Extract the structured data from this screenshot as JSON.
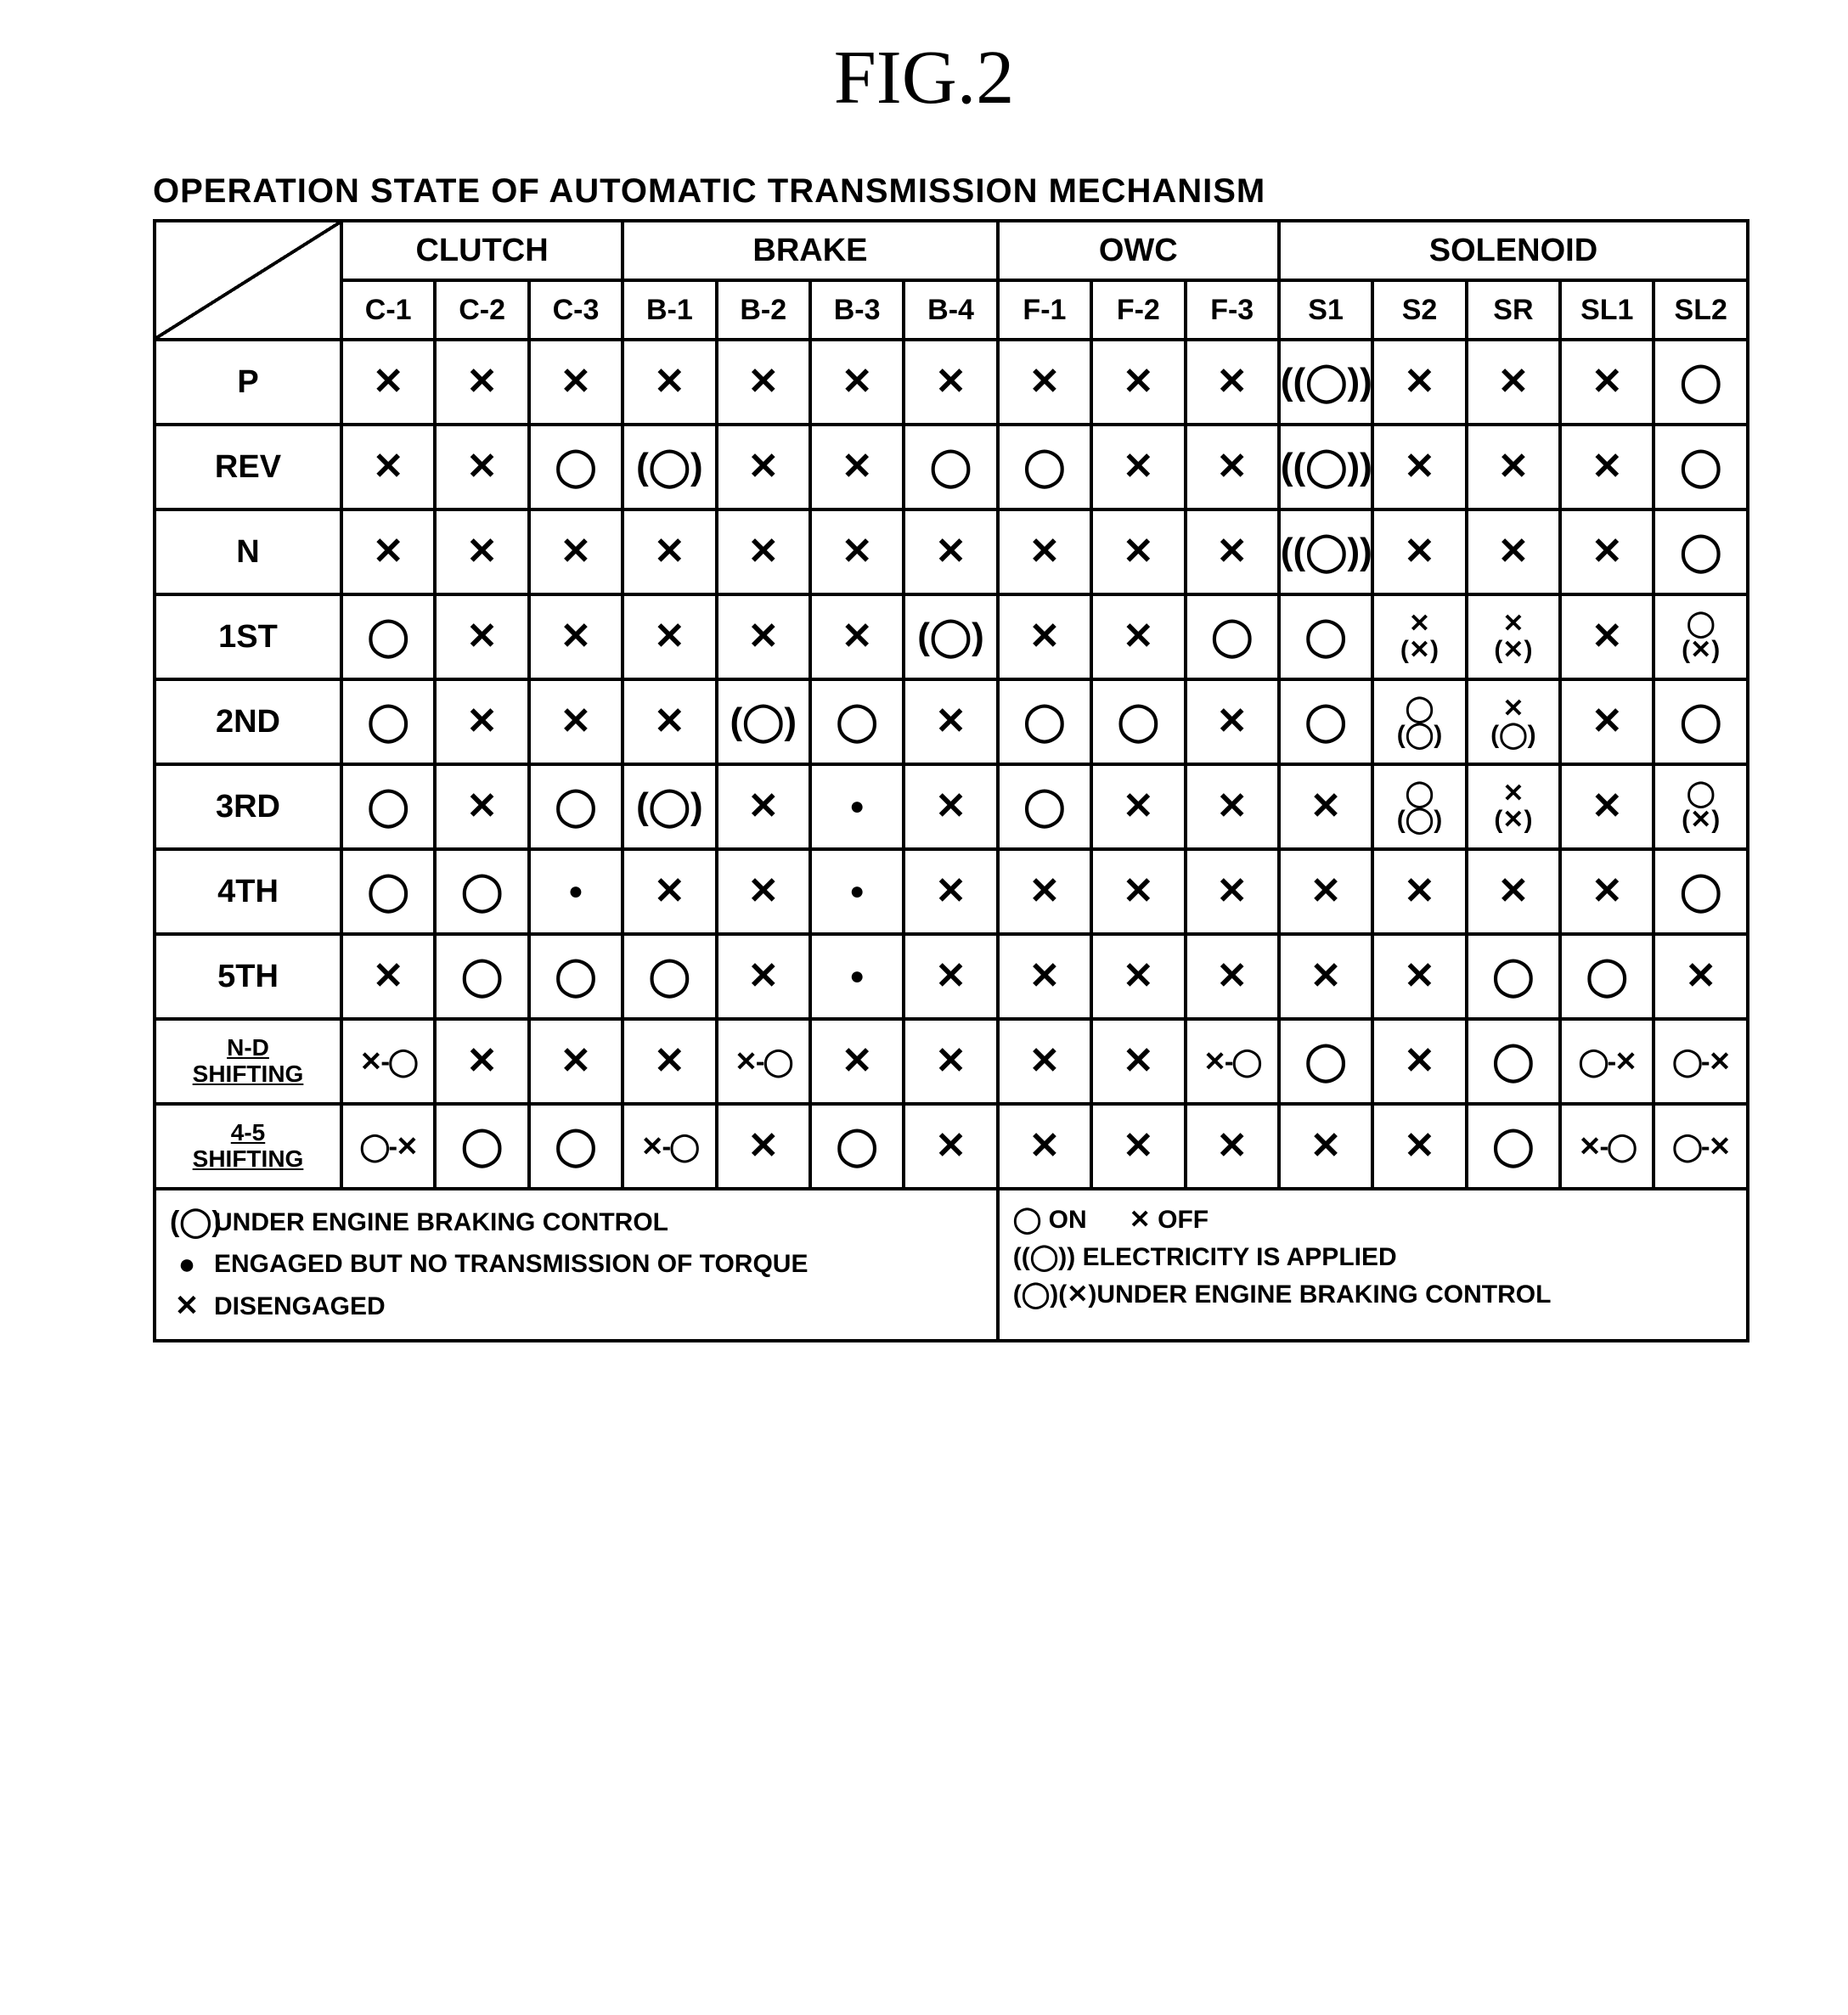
{
  "figure_title": "FIG.2",
  "caption": "OPERATION STATE OF AUTOMATIC TRANSMISSION MECHANISM",
  "groups": [
    {
      "label": "CLUTCH",
      "cols": [
        "C-1",
        "C-2",
        "C-3"
      ]
    },
    {
      "label": "BRAKE",
      "cols": [
        "B-1",
        "B-2",
        "B-3",
        "B-4"
      ]
    },
    {
      "label": "OWC",
      "cols": [
        "F-1",
        "F-2",
        "F-3"
      ]
    },
    {
      "label": "SOLENOID",
      "cols": [
        "S1",
        "S2",
        "SR",
        "SL1",
        "SL2"
      ]
    }
  ],
  "rows": [
    {
      "label": "P",
      "cells": [
        "X",
        "X",
        "X",
        "X",
        "X",
        "X",
        "X",
        "X",
        "X",
        "X",
        "DO",
        "X",
        "X",
        "X",
        "O"
      ]
    },
    {
      "label": "REV",
      "cells": [
        "X",
        "X",
        "O",
        "PO",
        "X",
        "X",
        "O",
        "O",
        "X",
        "X",
        "DO",
        "X",
        "X",
        "X",
        "O"
      ]
    },
    {
      "label": "N",
      "cells": [
        "X",
        "X",
        "X",
        "X",
        "X",
        "X",
        "X",
        "X",
        "X",
        "X",
        "DO",
        "X",
        "X",
        "X",
        "O"
      ]
    },
    {
      "label": "1ST",
      "cells": [
        "O",
        "X",
        "X",
        "X",
        "X",
        "X",
        "PO",
        "X",
        "X",
        "O",
        "O",
        "X/(X)",
        "X/(X)",
        "X",
        "O/(X)"
      ]
    },
    {
      "label": "2ND",
      "cells": [
        "O",
        "X",
        "X",
        "X",
        "PO",
        "O",
        "X",
        "O",
        "O",
        "X",
        "O",
        "O/(O)",
        "X/(O)",
        "X",
        "O"
      ]
    },
    {
      "label": "3RD",
      "cells": [
        "O",
        "X",
        "O",
        "PO",
        "X",
        "F",
        "X",
        "O",
        "X",
        "X",
        "X",
        "O/(O)",
        "X/(X)",
        "X",
        "O/(X)"
      ]
    },
    {
      "label": "4TH",
      "cells": [
        "O",
        "O",
        "F",
        "X",
        "X",
        "F",
        "X",
        "X",
        "X",
        "X",
        "X",
        "X",
        "X",
        "X",
        "O"
      ]
    },
    {
      "label": "5TH",
      "cells": [
        "X",
        "O",
        "O",
        "O",
        "X",
        "F",
        "X",
        "X",
        "X",
        "X",
        "X",
        "X",
        "O",
        "O",
        "X"
      ]
    },
    {
      "label": "N-D SHIFTING",
      "label_small": true,
      "cells": [
        "X-O",
        "X",
        "X",
        "X",
        "X-O",
        "X",
        "X",
        "X",
        "X",
        "X-O",
        "O",
        "X",
        "O",
        "O-X",
        "O-X"
      ]
    },
    {
      "label": "4-5 SHIFTING",
      "label_small": true,
      "cells": [
        "O-X",
        "O",
        "O",
        "X-O",
        "X",
        "O",
        "X",
        "X",
        "X",
        "X",
        "X",
        "X",
        "O",
        "X-O",
        "O-X"
      ]
    }
  ],
  "legend_left": [
    {
      "icon": "(◯)",
      "text": "UNDER ENGINE BRAKING CONTROL"
    },
    {
      "icon": "●",
      "text": "ENGAGED BUT NO TRANSMISSION OF TORQUE"
    },
    {
      "icon": "✕",
      "text": "DISENGAGED"
    }
  ],
  "legend_right": [
    {
      "text": "◯ ON        ✕ OFF"
    },
    {
      "text": "((◯)) ELECTRICITY IS APPLIED"
    },
    {
      "text": "(◯)(✕)UNDER ENGINE BRAKING CONTROL"
    }
  ],
  "symbols": {
    "X": "✕",
    "O": "◯",
    "PO": "(◯)",
    "DO": "((◯))",
    "F": "●"
  },
  "colors": {
    "border": "#000000",
    "bg": "#ffffff",
    "text": "#000000"
  }
}
